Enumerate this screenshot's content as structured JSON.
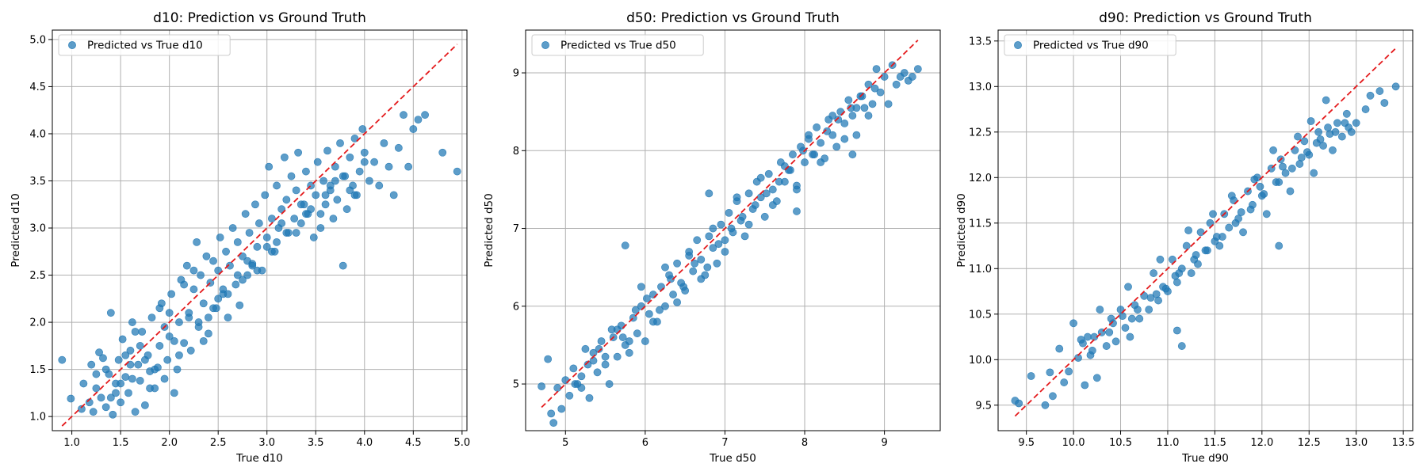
{
  "colors": {
    "point": "#1f77b4",
    "ideal_line": "#e41a1c",
    "grid": "#b0b0b0",
    "axis": "#000000"
  },
  "chart_data": [
    {
      "type": "scatter",
      "title": "d10: Prediction vs Ground Truth",
      "xlabel": "True d10",
      "ylabel": "Predicted d10",
      "xlim": [
        0.8,
        5.05
      ],
      "ylim": [
        0.85,
        5.1
      ],
      "xticks": [
        "1.0",
        "1.5",
        "2.0",
        "2.5",
        "3.0",
        "3.5",
        "4.0",
        "4.5",
        "5.0"
      ],
      "yticks": [
        "1.0",
        "1.5",
        "2.0",
        "2.5",
        "3.0",
        "3.5",
        "4.0",
        "4.5",
        "5.0"
      ],
      "grid": true,
      "legend_position": "upper-left",
      "series": [
        {
          "name": "Predicted vs True d10",
          "x": [
            0.9,
            0.99,
            1.1,
            1.12,
            1.18,
            1.2,
            1.22,
            1.25,
            1.28,
            1.3,
            1.32,
            1.35,
            1.38,
            1.4,
            1.42,
            1.45,
            1.48,
            1.5,
            1.52,
            1.55,
            1.58,
            1.6,
            1.62,
            1.65,
            1.68,
            1.7,
            1.72,
            1.75,
            1.78,
            1.8,
            1.82,
            1.85,
            1.88,
            1.9,
            1.92,
            1.95,
            1.98,
            2.0,
            2.02,
            2.05,
            2.08,
            2.1,
            2.12,
            2.15,
            2.18,
            2.2,
            2.22,
            2.25,
            2.28,
            2.3,
            2.32,
            2.35,
            2.38,
            2.4,
            2.42,
            2.45,
            2.48,
            2.5,
            2.52,
            2.55,
            2.58,
            2.6,
            2.62,
            2.65,
            2.68,
            2.7,
            2.72,
            2.75,
            2.78,
            2.8,
            2.82,
            2.85,
            2.88,
            2.9,
            2.92,
            2.95,
            2.98,
            3.0,
            3.02,
            3.05,
            3.08,
            3.1,
            3.12,
            3.15,
            3.18,
            3.2,
            3.22,
            3.25,
            3.28,
            3.3,
            3.32,
            3.35,
            3.38,
            3.4,
            3.42,
            3.45,
            3.48,
            3.5,
            3.52,
            3.55,
            3.58,
            3.6,
            3.62,
            3.65,
            3.68,
            3.7,
            3.72,
            3.75,
            3.78,
            3.8,
            3.82,
            3.85,
            3.88,
            3.9,
            3.92,
            3.95,
            3.98,
            4.0,
            4.05,
            4.1,
            4.15,
            4.2,
            4.25,
            4.3,
            4.35,
            4.4,
            4.45,
            4.5,
            4.55,
            4.62,
            4.8,
            4.95,
            1.25,
            1.4,
            1.55,
            1.62,
            1.7,
            1.85,
            1.95,
            2.1,
            2.2,
            2.35,
            2.45,
            2.6,
            2.75,
            2.9,
            3.05,
            3.2,
            3.4,
            3.6,
            3.78,
            1.35,
            1.5,
            1.65,
            1.75,
            1.9,
            2.05,
            2.15,
            2.3,
            2.5,
            2.7,
            2.85,
            3.0,
            3.15,
            3.3,
            3.45,
            3.65,
            3.85,
            4.0,
            1.45,
            1.6,
            1.8,
            2.0,
            2.25,
            2.4,
            2.55,
            2.8,
            3.1,
            3.35,
            3.55,
            3.7,
            3.9
          ],
          "y": [
            1.6,
            1.19,
            1.08,
            1.35,
            1.15,
            1.55,
            1.05,
            1.3,
            1.68,
            1.2,
            1.62,
            1.1,
            1.45,
            2.1,
            1.02,
            1.35,
            1.6,
            1.15,
            1.82,
            1.42,
            1.25,
            1.7,
            2.0,
            1.05,
            1.55,
            1.38,
            1.9,
            1.12,
            1.65,
            1.48,
            2.05,
            1.3,
            1.52,
            1.75,
            2.2,
            1.4,
            1.6,
            1.85,
            2.3,
            1.25,
            1.5,
            2.0,
            2.45,
            1.78,
            2.6,
            2.1,
            1.7,
            2.35,
            2.85,
            1.95,
            2.5,
            2.2,
            2.7,
            1.88,
            2.42,
            2.65,
            2.15,
            2.55,
            2.9,
            2.3,
            2.75,
            2.05,
            2.6,
            3.0,
            2.4,
            2.85,
            2.18,
            2.7,
            3.15,
            2.5,
            2.95,
            2.62,
            3.25,
            2.8,
            3.05,
            2.55,
            3.35,
            2.9,
            3.65,
            3.1,
            2.75,
            3.45,
            3.0,
            3.2,
            3.75,
            3.3,
            2.95,
            3.55,
            3.1,
            3.4,
            3.8,
            3.05,
            3.25,
            3.6,
            3.15,
            3.45,
            2.9,
            3.35,
            3.7,
            3.0,
            3.5,
            3.25,
            3.82,
            3.4,
            3.1,
            3.65,
            3.3,
            3.9,
            2.6,
            3.55,
            3.2,
            3.75,
            3.45,
            3.95,
            3.35,
            3.6,
            4.05,
            3.8,
            3.5,
            3.7,
            3.45,
            3.9,
            3.65,
            3.35,
            3.85,
            4.2,
            3.65,
            4.05,
            4.15,
            4.2,
            3.8,
            3.6,
            1.45,
            1.2,
            1.65,
            1.4,
            1.75,
            1.5,
            1.95,
            1.65,
            2.05,
            1.8,
            2.15,
            2.3,
            2.45,
            2.55,
            2.75,
            2.95,
            3.15,
            3.35,
            3.55,
            1.5,
            1.35,
            1.9,
            1.6,
            2.15,
            1.8,
            2.4,
            2.0,
            2.25,
            2.5,
            2.6,
            2.8,
            3.05,
            2.95,
            3.2,
            3.45,
            3.4,
            3.7,
            1.25,
            1.55,
            1.3,
            2.1,
            2.55,
            2.05,
            2.35,
            2.65,
            2.85,
            3.25,
            3.15,
            3.5,
            3.35
          ]
        }
      ],
      "reference_line": {
        "from": [
          0.9,
          0.9
        ],
        "to": [
          4.95,
          4.95
        ]
      }
    },
    {
      "type": "scatter",
      "title": "d50: Prediction vs Ground Truth",
      "xlabel": "True d50",
      "ylabel": "Predicted d50",
      "xlim": [
        4.5,
        9.7
      ],
      "ylim": [
        4.4,
        9.55
      ],
      "xticks": [
        "5",
        "6",
        "7",
        "8",
        "9"
      ],
      "yticks": [
        "5",
        "6",
        "7",
        "8",
        "9"
      ],
      "grid": true,
      "legend_position": "upper-left",
      "series": [
        {
          "name": "Predicted vs True d50",
          "x": [
            4.7,
            4.78,
            4.82,
            4.85,
            4.9,
            4.95,
            5.0,
            5.05,
            5.1,
            5.15,
            5.2,
            5.25,
            5.3,
            5.35,
            5.4,
            5.45,
            5.5,
            5.55,
            5.6,
            5.65,
            5.7,
            5.75,
            5.8,
            5.85,
            5.9,
            5.95,
            6.0,
            6.05,
            6.1,
            6.15,
            6.2,
            6.25,
            6.3,
            6.35,
            6.4,
            6.45,
            6.5,
            6.55,
            6.6,
            6.65,
            6.7,
            6.75,
            6.8,
            6.85,
            6.9,
            6.95,
            7.0,
            7.05,
            7.1,
            7.15,
            7.2,
            7.25,
            7.3,
            7.35,
            7.4,
            7.45,
            7.5,
            7.55,
            7.6,
            7.65,
            7.7,
            7.75,
            7.8,
            7.85,
            7.9,
            7.95,
            8.0,
            8.05,
            8.1,
            8.15,
            8.2,
            8.25,
            8.3,
            8.35,
            8.4,
            8.45,
            8.5,
            8.55,
            8.6,
            8.65,
            8.7,
            8.75,
            8.8,
            8.85,
            8.9,
            8.95,
            9.0,
            9.05,
            9.1,
            9.15,
            9.2,
            9.25,
            9.3,
            9.35,
            9.42,
            5.12,
            5.28,
            5.42,
            5.58,
            5.72,
            5.88,
            6.02,
            6.18,
            6.32,
            6.48,
            6.62,
            6.78,
            6.92,
            7.08,
            7.22,
            7.38,
            7.52,
            7.68,
            7.82,
            7.98,
            8.12,
            8.28,
            8.42,
            8.58,
            8.72,
            8.88,
            5.2,
            5.5,
            5.8,
            6.1,
            6.4,
            6.7,
            7.0,
            7.3,
            7.6,
            7.9,
            8.2,
            8.5,
            8.8,
            5.35,
            5.65,
            5.95,
            6.25,
            6.55,
            6.85,
            7.15,
            7.45,
            7.75,
            8.05,
            8.35,
            8.65,
            5.75,
            6.8,
            7.9,
            8.6
          ],
          "y": [
            4.97,
            5.32,
            4.62,
            4.5,
            4.95,
            4.68,
            5.05,
            4.85,
            5.2,
            5.0,
            5.1,
            5.45,
            4.82,
            5.3,
            5.15,
            5.55,
            5.25,
            5.0,
            5.6,
            5.35,
            5.75,
            5.5,
            5.4,
            5.85,
            5.65,
            6.0,
            5.55,
            5.9,
            6.15,
            5.8,
            6.25,
            6.0,
            6.4,
            6.15,
            6.55,
            6.3,
            6.2,
            6.65,
            6.45,
            6.85,
            6.6,
            6.4,
            6.9,
            6.75,
            6.55,
            7.05,
            6.85,
            7.2,
            6.95,
            7.35,
            7.1,
            6.9,
            7.45,
            7.25,
            7.6,
            7.4,
            7.15,
            7.7,
            7.5,
            7.35,
            7.85,
            7.6,
            7.75,
            7.95,
            7.5,
            8.05,
            7.85,
            8.15,
            7.95,
            8.3,
            8.1,
            7.9,
            8.4,
            8.2,
            8.05,
            8.5,
            8.35,
            8.65,
            8.45,
            8.2,
            8.7,
            8.55,
            8.85,
            8.6,
            9.05,
            8.75,
            8.95,
            8.6,
            9.1,
            8.85,
            8.95,
            9.0,
            8.9,
            8.95,
            9.05,
            5.0,
            5.25,
            5.45,
            5.7,
            5.6,
            5.95,
            6.1,
            5.95,
            6.35,
            6.25,
            6.55,
            6.5,
            6.8,
            7.0,
            7.15,
            7.3,
            7.45,
            7.6,
            7.75,
            8.0,
            7.95,
            8.25,
            8.4,
            8.55,
            8.7,
            8.8,
            4.95,
            5.35,
            5.55,
            5.8,
            6.05,
            6.35,
            6.7,
            7.05,
            7.3,
            7.55,
            7.85,
            8.15,
            8.45,
            5.4,
            5.7,
            6.25,
            6.5,
            6.7,
            7.0,
            7.4,
            7.65,
            7.8,
            8.2,
            8.45,
            8.55,
            6.78,
            7.45,
            7.22,
            7.95
          ]
        }
      ],
      "reference_line": {
        "from": [
          4.7,
          4.7
        ],
        "to": [
          9.42,
          9.42
        ]
      }
    },
    {
      "type": "scatter",
      "title": "d90: Prediction vs Ground Truth",
      "xlabel": "True d90",
      "ylabel": "Predicted d90",
      "xlim": [
        9.2,
        13.6
      ],
      "ylim": [
        9.22,
        13.62
      ],
      "xticks": [
        "9.5",
        "10.0",
        "10.5",
        "11.0",
        "11.5",
        "12.0",
        "12.5",
        "13.0",
        "13.5"
      ],
      "yticks": [
        "9.5",
        "10.0",
        "10.5",
        "11.0",
        "11.5",
        "12.0",
        "12.5",
        "13.0",
        "13.5"
      ],
      "grid": true,
      "legend_position": "upper-left",
      "series": [
        {
          "name": "Predicted vs True d90",
          "x": [
            9.38,
            9.42,
            9.55,
            9.7,
            9.75,
            9.78,
            9.85,
            9.9,
            9.95,
            10.0,
            10.05,
            10.1,
            10.12,
            10.15,
            10.2,
            10.25,
            10.3,
            10.35,
            10.4,
            10.45,
            10.5,
            10.55,
            10.6,
            10.65,
            10.7,
            10.75,
            10.8,
            10.85,
            10.9,
            10.95,
            11.0,
            11.05,
            11.1,
            11.15,
            11.2,
            11.25,
            11.3,
            11.35,
            11.4,
            11.45,
            11.5,
            11.55,
            11.6,
            11.65,
            11.7,
            11.75,
            11.8,
            11.85,
            11.9,
            11.95,
            12.0,
            12.05,
            12.1,
            12.15,
            12.2,
            12.25,
            12.3,
            12.35,
            12.4,
            12.45,
            12.5,
            12.55,
            12.6,
            12.65,
            12.7,
            12.75,
            12.8,
            12.85,
            12.9,
            12.95,
            13.0,
            13.1,
            13.15,
            13.25,
            13.3,
            13.42,
            10.08,
            10.22,
            10.38,
            10.52,
            10.68,
            10.82,
            10.98,
            11.12,
            11.28,
            11.42,
            11.58,
            11.72,
            11.88,
            12.02,
            12.18,
            12.32,
            12.48,
            12.62,
            12.78,
            12.92,
            10.18,
            10.42,
            10.62,
            10.88,
            11.08,
            11.32,
            11.52,
            11.78,
            11.98,
            12.22,
            12.42,
            12.58,
            12.72,
            12.88,
            10.28,
            10.58,
            10.92,
            11.22,
            11.48,
            11.68,
            11.92,
            12.12,
            12.38,
            12.52,
            12.68,
            11.1,
            11.15,
            12.18
          ],
          "y": [
            9.55,
            9.52,
            9.82,
            9.5,
            9.86,
            9.6,
            10.12,
            9.75,
            9.87,
            10.4,
            10.02,
            10.18,
            9.72,
            10.25,
            10.1,
            9.8,
            10.3,
            10.15,
            10.45,
            10.2,
            10.55,
            10.35,
            10.25,
            10.6,
            10.45,
            10.7,
            10.55,
            10.95,
            10.65,
            10.8,
            10.75,
            11.1,
            10.85,
            11.0,
            11.25,
            10.95,
            11.15,
            11.4,
            11.2,
            11.5,
            11.3,
            11.25,
            11.6,
            11.45,
            11.75,
            11.55,
            11.4,
            11.85,
            11.7,
            12.0,
            11.8,
            11.6,
            12.1,
            11.95,
            12.2,
            12.05,
            11.85,
            12.3,
            12.15,
            12.4,
            12.25,
            12.05,
            12.5,
            12.35,
            12.55,
            12.3,
            12.6,
            12.45,
            12.7,
            12.5,
            12.6,
            12.75,
            12.9,
            12.95,
            12.82,
            13.0,
            10.22,
            10.25,
            10.3,
            10.48,
            10.55,
            10.68,
            10.78,
            10.95,
            11.1,
            11.2,
            11.35,
            11.5,
            11.65,
            11.82,
            11.95,
            12.1,
            12.28,
            12.42,
            12.5,
            12.55,
            10.05,
            10.4,
            10.45,
            10.72,
            10.92,
            11.05,
            11.35,
            11.62,
            11.9,
            12.12,
            12.22,
            12.38,
            12.48,
            12.6,
            10.55,
            10.8,
            11.1,
            11.42,
            11.6,
            11.8,
            11.98,
            12.3,
            12.45,
            12.62,
            12.85,
            10.32,
            10.15,
            11.25
          ]
        }
      ],
      "reference_line": {
        "from": [
          9.38,
          9.38
        ],
        "to": [
          13.42,
          13.42
        ]
      }
    }
  ]
}
